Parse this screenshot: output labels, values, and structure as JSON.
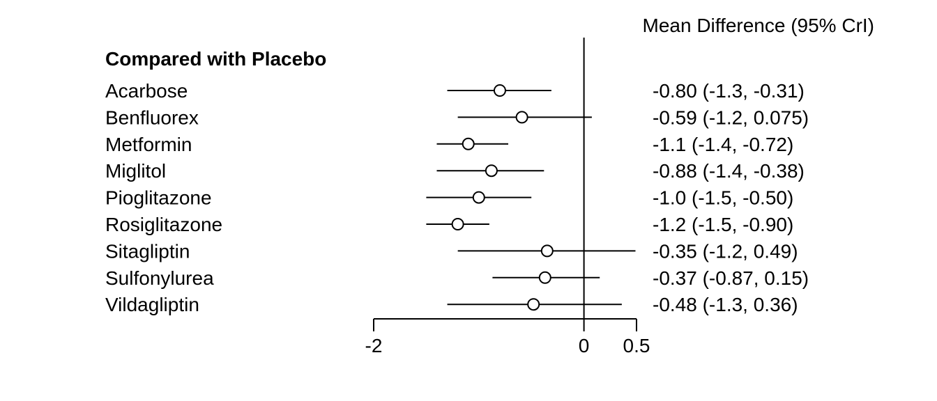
{
  "chart_data": {
    "type": "forest",
    "column_title": "Mean Difference (95% CrI)",
    "group_title": "Compared with Placebo",
    "reference_line": 0,
    "xticks": [
      -2,
      0,
      0.5
    ],
    "xtick_labels": [
      "-2",
      "0",
      "0.5"
    ],
    "xlim": [
      -2,
      0.5
    ],
    "rows": [
      {
        "label": "Acarbose",
        "mean": -0.8,
        "lower": -1.3,
        "upper": -0.31,
        "text": "-0.80 (-1.3, -0.31)"
      },
      {
        "label": "Benfluorex",
        "mean": -0.59,
        "lower": -1.2,
        "upper": 0.075,
        "text": "-0.59 (-1.2, 0.075)"
      },
      {
        "label": "Metformin",
        "mean": -1.1,
        "lower": -1.4,
        "upper": -0.72,
        "text": "-1.1 (-1.4, -0.72)"
      },
      {
        "label": "Miglitol",
        "mean": -0.88,
        "lower": -1.4,
        "upper": -0.38,
        "text": "-0.88 (-1.4, -0.38)"
      },
      {
        "label": "Pioglitazone",
        "mean": -1.0,
        "lower": -1.5,
        "upper": -0.5,
        "text": "-1.0 (-1.5, -0.50)"
      },
      {
        "label": "Rosiglitazone",
        "mean": -1.2,
        "lower": -1.5,
        "upper": -0.9,
        "text": "-1.2 (-1.5, -0.90)"
      },
      {
        "label": "Sitagliptin",
        "mean": -0.35,
        "lower": -1.2,
        "upper": 0.49,
        "text": "-0.35 (-1.2, 0.49)"
      },
      {
        "label": "Sulfonylurea",
        "mean": -0.37,
        "lower": -0.87,
        "upper": 0.15,
        "text": "-0.37 (-0.87, 0.15)"
      },
      {
        "label": "Vildagliptin",
        "mean": -0.48,
        "lower": -1.3,
        "upper": 0.36,
        "text": "-0.48 (-1.3, 0.36)"
      }
    ]
  }
}
